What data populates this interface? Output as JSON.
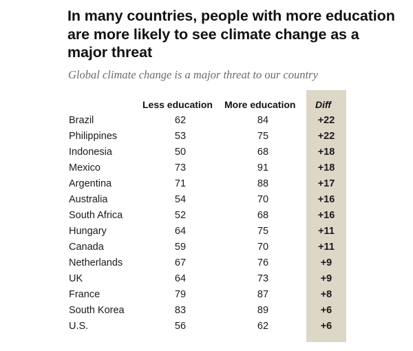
{
  "chart_data": {
    "type": "table",
    "title": "In many countries, people with more education are more likely to see climate change as a major threat",
    "subtitle": "Global climate change is a major threat to our country",
    "columns": [
      "Less education",
      "More education",
      "Diff"
    ],
    "rows": [
      {
        "country": "Brazil",
        "less": "62",
        "more": "84",
        "diff": "+22"
      },
      {
        "country": "Philippines",
        "less": "53",
        "more": "75",
        "diff": "+22"
      },
      {
        "country": "Indonesia",
        "less": "50",
        "more": "68",
        "diff": "+18"
      },
      {
        "country": "Mexico",
        "less": "73",
        "more": "91",
        "diff": "+18"
      },
      {
        "country": "Argentina",
        "less": "71",
        "more": "88",
        "diff": "+17"
      },
      {
        "country": "Australia",
        "less": "54",
        "more": "70",
        "diff": "+16"
      },
      {
        "country": "South Africa",
        "less": "52",
        "more": "68",
        "diff": "+16"
      },
      {
        "country": "Hungary",
        "less": "64",
        "more": "75",
        "diff": "+11"
      },
      {
        "country": "Canada",
        "less": "59",
        "more": "70",
        "diff": "+11"
      },
      {
        "country": "Netherlands",
        "less": "67",
        "more": "76",
        "diff": "+9"
      },
      {
        "country": "UK",
        "less": "64",
        "more": "73",
        "diff": "+9"
      },
      {
        "country": "France",
        "less": "79",
        "more": "87",
        "diff": "+8"
      },
      {
        "country": "South Korea",
        "less": "83",
        "more": "89",
        "diff": "+6"
      },
      {
        "country": "U.S.",
        "less": "56",
        "more": "62",
        "diff": "+6"
      }
    ]
  },
  "colors": {
    "diff_band": "#dcd7c7",
    "subtitle": "#6b6b6b",
    "text": "#1a1a1a"
  }
}
